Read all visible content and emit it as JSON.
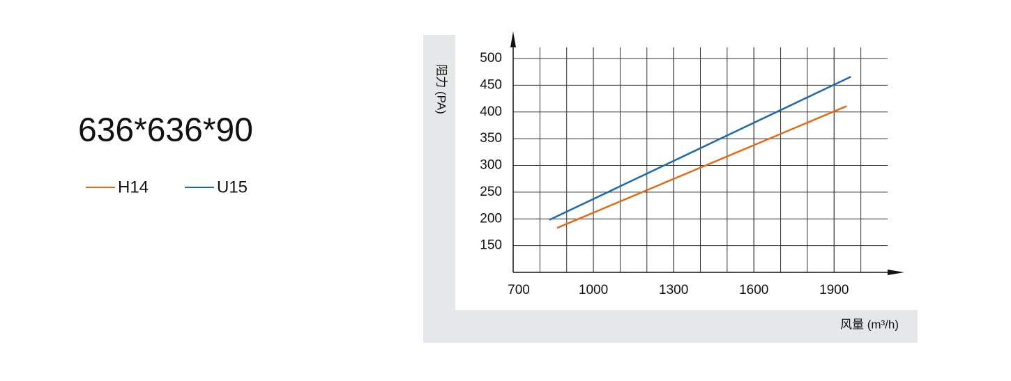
{
  "chart_data": {
    "type": "line",
    "title": "636*636*90",
    "x_label": "风量 (m³/h)",
    "y_label": "阻力 (PA)",
    "xlim": [
      700,
      2100
    ],
    "ylim": [
      100,
      500
    ],
    "xticks": [
      700,
      1000,
      1300,
      1600,
      1900
    ],
    "yticks": [
      150,
      200,
      250,
      300,
      350,
      400,
      450,
      500
    ],
    "grid": true,
    "series": [
      {
        "name": "H14",
        "color": "#e06c1a",
        "x": [
          864,
          1947
        ],
        "values": [
          183,
          411
        ]
      },
      {
        "name": "U15",
        "color": "#1f6aa8",
        "x": [
          835,
          1963
        ],
        "values": [
          198,
          466
        ]
      }
    ]
  }
}
